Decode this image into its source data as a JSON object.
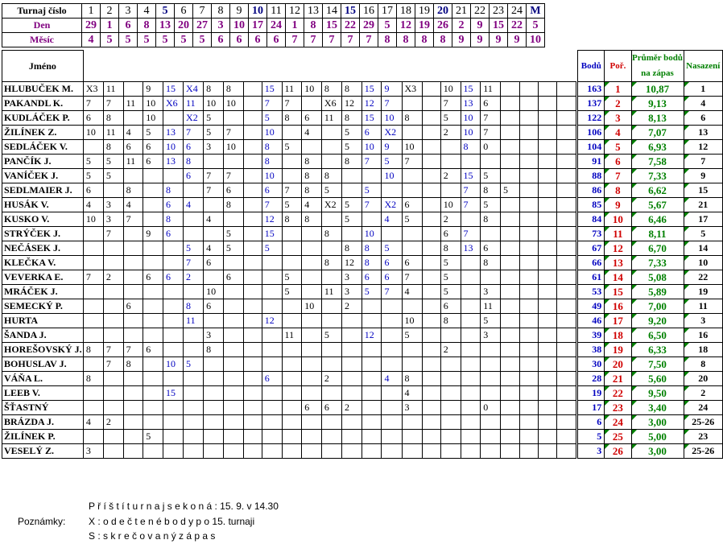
{
  "header": {
    "labels": [
      "Turnaj číslo",
      "Den",
      "Měsíc"
    ],
    "turnaj": [
      "1",
      "2",
      "3",
      "4",
      "5",
      "6",
      "7",
      "8",
      "9",
      "10",
      "11",
      "12",
      "13",
      "14",
      "15",
      "16",
      "17",
      "18",
      "19",
      "20",
      "21",
      "22",
      "23",
      "24",
      "M"
    ],
    "den": [
      "29",
      "1",
      "6",
      "8",
      "13",
      "20",
      "27",
      "3",
      "10",
      "17",
      "24",
      "1",
      "8",
      "15",
      "22",
      "29",
      "5",
      "12",
      "19",
      "26",
      "2",
      "9",
      "15",
      "22",
      "5"
    ],
    "mesic": [
      "4",
      "5",
      "5",
      "5",
      "5",
      "5",
      "5",
      "6",
      "6",
      "6",
      "6",
      "7",
      "7",
      "7",
      "7",
      "7",
      "8",
      "8",
      "8",
      "8",
      "9",
      "9",
      "9",
      "9",
      "10"
    ]
  },
  "columns": {
    "jmeno": "Jméno",
    "body": "Bodů",
    "poradi": "Poř.",
    "prumer": "Průměr bodů na zápas",
    "nasazeni": "Nasazení"
  },
  "players": [
    {
      "name": "HLUBUČEK M.",
      "scores": [
        "X3",
        "11",
        "",
        "9",
        "15",
        "X4",
        "8",
        "8",
        "",
        "15",
        "11",
        "10",
        "8",
        "8",
        "15",
        "9",
        "X3",
        "",
        "10",
        "15",
        "11",
        "",
        "",
        "",
        ""
      ],
      "points": "163",
      "rank": "1",
      "avg": "10,87",
      "seed": "1"
    },
    {
      "name": "PAKANDL K.",
      "scores": [
        "7",
        "7",
        "11",
        "10",
        "X6",
        "11",
        "10",
        "10",
        "",
        "7",
        "7",
        "",
        "X6",
        "12",
        "12",
        "7",
        "",
        "",
        "7",
        "13",
        "6",
        "",
        "",
        "",
        ""
      ],
      "points": "137",
      "rank": "2",
      "avg": "9,13",
      "seed": "4"
    },
    {
      "name": "KUDLÁČEK P.",
      "scores": [
        "6",
        "8",
        "",
        "10",
        "",
        "X2",
        "5",
        "",
        "",
        "5",
        "8",
        "6",
        "11",
        "8",
        "15",
        "10",
        "8",
        "",
        "5",
        "10",
        "7",
        "",
        "",
        "",
        ""
      ],
      "points": "122",
      "rank": "3",
      "avg": "8,13",
      "seed": "6"
    },
    {
      "name": "ŽILÍNEK Z.",
      "scores": [
        "10",
        "11",
        "4",
        "5",
        "13",
        "7",
        "5",
        "7",
        "",
        "10",
        "",
        "4",
        "",
        "5",
        "6",
        "X2",
        "",
        "",
        "2",
        "10",
        "7",
        "",
        "",
        "",
        ""
      ],
      "points": "106",
      "rank": "4",
      "avg": "7,07",
      "seed": "13"
    },
    {
      "name": "SEDLÁČEK V.",
      "scores": [
        "",
        "8",
        "6",
        "6",
        "10",
        "6",
        "3",
        "10",
        "",
        "8",
        "5",
        "",
        "",
        "5",
        "10",
        "9",
        "10",
        "",
        "",
        "8",
        "0",
        "",
        "",
        "",
        ""
      ],
      "points": "104",
      "rank": "5",
      "avg": "6,93",
      "seed": "12"
    },
    {
      "name": "PANČÍK J.",
      "scores": [
        "5",
        "5",
        "11",
        "6",
        "13",
        "8",
        "",
        "",
        "",
        "8",
        "",
        "8",
        "",
        "8",
        "7",
        "5",
        "7",
        "",
        "",
        "",
        "",
        "",
        "",
        "",
        ""
      ],
      "points": "91",
      "rank": "6",
      "avg": "7,58",
      "seed": "7"
    },
    {
      "name": "VANÍČEK J.",
      "scores": [
        "5",
        "5",
        "",
        "",
        "",
        "6",
        "7",
        "7",
        "",
        "10",
        "",
        "8",
        "8",
        "",
        "",
        "10",
        "",
        "",
        "2",
        "15",
        "5",
        "",
        "",
        "",
        ""
      ],
      "points": "88",
      "rank": "7",
      "avg": "7,33",
      "seed": "9"
    },
    {
      "name": "SEDLMAIER J.",
      "scores": [
        "6",
        "",
        "8",
        "",
        "8",
        "",
        "7",
        "6",
        "",
        "6",
        "7",
        "8",
        "5",
        "",
        "5",
        "",
        "",
        "",
        "",
        "7",
        "8",
        "5",
        "",
        "",
        ""
      ],
      "points": "86",
      "rank": "8",
      "avg": "6,62",
      "seed": "15"
    },
    {
      "name": "HUSÁK V.",
      "scores": [
        "4",
        "3",
        "4",
        "",
        "6",
        "4",
        "",
        "8",
        "",
        "7",
        "5",
        "4",
        "X2",
        "5",
        "7",
        "X2",
        "6",
        "",
        "10",
        "7",
        "5",
        "",
        "",
        "",
        ""
      ],
      "points": "85",
      "rank": "9",
      "avg": "5,67",
      "seed": "21"
    },
    {
      "name": "KUSKO V.",
      "scores": [
        "10",
        "3",
        "7",
        "",
        "8",
        "",
        "4",
        "",
        "",
        "12",
        "8",
        "8",
        "",
        "5",
        "",
        "4",
        "5",
        "",
        "2",
        "",
        "8",
        "",
        "",
        "",
        ""
      ],
      "points": "84",
      "rank": "10",
      "avg": "6,46",
      "seed": "17"
    },
    {
      "name": "STRÝČEK J.",
      "scores": [
        "",
        "7",
        "",
        "9",
        "6",
        "",
        "",
        "5",
        "",
        "15",
        "",
        "",
        "8",
        "",
        "10",
        "",
        "",
        "",
        "6",
        "7",
        "",
        "",
        "",
        "",
        ""
      ],
      "points": "73",
      "rank": "11",
      "avg": "8,11",
      "seed": "5"
    },
    {
      "name": "NEČÁSEK J.",
      "scores": [
        "",
        "",
        "",
        "",
        "",
        "5",
        "4",
        "5",
        "",
        "5",
        "",
        "",
        "",
        "8",
        "8",
        "5",
        "",
        "",
        "8",
        "13",
        "6",
        "",
        "",
        "",
        ""
      ],
      "points": "67",
      "rank": "12",
      "avg": "6,70",
      "seed": "14"
    },
    {
      "name": "KLEČKA V.",
      "scores": [
        "",
        "",
        "",
        "",
        "",
        "7",
        "6",
        "",
        "",
        "",
        "",
        "",
        "8",
        "12",
        "8",
        "6",
        "6",
        "",
        "5",
        "",
        "8",
        "",
        "",
        "",
        ""
      ],
      "points": "66",
      "rank": "13",
      "avg": "7,33",
      "seed": "10"
    },
    {
      "name": "VEVERKA E.",
      "scores": [
        "7",
        "2",
        "",
        "6",
        "6",
        "2",
        "",
        "6",
        "",
        "",
        "5",
        "",
        "",
        "3",
        "6",
        "6",
        "7",
        "",
        "5",
        "",
        "",
        "",
        "",
        "",
        ""
      ],
      "points": "61",
      "rank": "14",
      "avg": "5,08",
      "seed": "22"
    },
    {
      "name": "MRÁČEK J.",
      "scores": [
        "",
        "",
        "",
        "",
        "",
        "",
        "10",
        "",
        "",
        "",
        "5",
        "",
        "11",
        "3",
        "5",
        "7",
        "4",
        "",
        "5",
        "",
        "3",
        "",
        "",
        "",
        ""
      ],
      "points": "53",
      "rank": "15",
      "avg": "5,89",
      "seed": "19"
    },
    {
      "name": "SEMECKÝ P.",
      "scores": [
        "",
        "",
        "6",
        "",
        "",
        "8",
        "6",
        "",
        "",
        "",
        "",
        "10",
        "",
        "2",
        "",
        "",
        "",
        "",
        "6",
        "",
        "11",
        "",
        "",
        "",
        ""
      ],
      "points": "49",
      "rank": "16",
      "avg": "7,00",
      "seed": "11"
    },
    {
      "name": "HURTA",
      "scores": [
        "",
        "",
        "",
        "",
        "",
        "11",
        "",
        "",
        "",
        "12",
        "",
        "",
        "",
        "",
        "",
        "",
        "10",
        "",
        "8",
        "",
        "5",
        "",
        "",
        "",
        ""
      ],
      "points": "46",
      "rank": "17",
      "avg": "9,20",
      "seed": "3"
    },
    {
      "name": "ŠANDA J.",
      "scores": [
        "",
        "",
        "",
        "",
        "",
        "",
        "3",
        "",
        "",
        "",
        "11",
        "",
        "5",
        "",
        "12",
        "",
        "5",
        "",
        "",
        "",
        "3",
        "",
        "",
        "",
        ""
      ],
      "points": "39",
      "rank": "18",
      "avg": "6,50",
      "seed": "16"
    },
    {
      "name": "HOREŠOVSKÝ J.",
      "scores": [
        "8",
        "7",
        "7",
        "6",
        "",
        "",
        "8",
        "",
        "",
        "",
        "",
        "",
        "",
        "",
        "",
        "",
        "",
        "",
        "2",
        "",
        "",
        "",
        "",
        "",
        ""
      ],
      "points": "38",
      "rank": "19",
      "avg": "6,33",
      "seed": "18"
    },
    {
      "name": "BOHUSLAV J.",
      "scores": [
        "",
        "7",
        "8",
        "",
        "10",
        "5",
        "",
        "",
        "",
        "",
        "",
        "",
        "",
        "",
        "",
        "",
        "",
        "",
        "",
        "",
        "",
        "",
        "",
        "",
        ""
      ],
      "points": "30",
      "rank": "20",
      "avg": "7,50",
      "seed": "8"
    },
    {
      "name": "VÁŇA L.",
      "scores": [
        "8",
        "",
        "",
        "",
        "",
        "",
        "",
        "",
        "",
        "6",
        "",
        "",
        "2",
        "",
        "",
        "4",
        "8",
        "",
        "",
        "",
        "",
        "",
        "",
        "",
        ""
      ],
      "points": "28",
      "rank": "21",
      "avg": "5,60",
      "seed": "20"
    },
    {
      "name": "LEEB V.",
      "scores": [
        "",
        "",
        "",
        "",
        "15",
        "",
        "",
        "",
        "",
        "",
        "",
        "",
        "",
        "",
        "",
        "",
        "4",
        "",
        "",
        "",
        "",
        "",
        "",
        "",
        ""
      ],
      "points": "19",
      "rank": "22",
      "avg": "9,50",
      "seed": "2"
    },
    {
      "name": "ŠŤASTNÝ",
      "scores": [
        "",
        "",
        "",
        "",
        "",
        "",
        "",
        "",
        "",
        "",
        "",
        "6",
        "6",
        "2",
        "",
        "",
        "3",
        "",
        "",
        "",
        "0",
        "",
        "",
        "",
        ""
      ],
      "points": "17",
      "rank": "23",
      "avg": "3,40",
      "seed": "24"
    },
    {
      "name": "BRÁZDA J.",
      "scores": [
        "4",
        "2",
        "",
        "",
        "",
        "",
        "",
        "",
        "",
        "",
        "",
        "",
        "",
        "",
        "",
        "",
        "",
        "",
        "",
        "",
        "",
        "",
        "",
        "",
        ""
      ],
      "points": "6",
      "rank": "24",
      "avg": "3,00",
      "seed": "25-26"
    },
    {
      "name": "ŽILÍNEK P.",
      "scores": [
        "",
        "",
        "",
        "5",
        "",
        "",
        "",
        "",
        "",
        "",
        "",
        "",
        "",
        "",
        "",
        "",
        "",
        "",
        "",
        "",
        "",
        "",
        "",
        "",
        ""
      ],
      "points": "5",
      "rank": "25",
      "avg": "5,00",
      "seed": "23"
    },
    {
      "name": "VESELÝ Z.",
      "scores": [
        "3",
        "",
        "",
        "",
        "",
        "",
        "",
        "",
        "",
        "",
        "",
        "",
        "",
        "",
        "",
        "",
        "",
        "",
        "",
        "",
        "",
        "",
        "",
        "",
        ""
      ],
      "points": "3",
      "rank": "26",
      "avg": "3,00",
      "seed": "25-26"
    }
  ],
  "notes": {
    "line1": "P ř í š t í      t u r n a j      s e      k o n á :      15.  9.     v     14.30",
    "label": "Poznámky:",
    "line2": "X  :  o d e č t e n é      b o d y      p o      15.      turnaji",
    "line3": "S  :  s k r e č o v a n ý      z á p a s"
  },
  "colors": {
    "points": "#0000c0",
    "rank": "#d00000",
    "avg": "#008000",
    "header_turnaj": "#000080",
    "header_den": "#800080"
  }
}
